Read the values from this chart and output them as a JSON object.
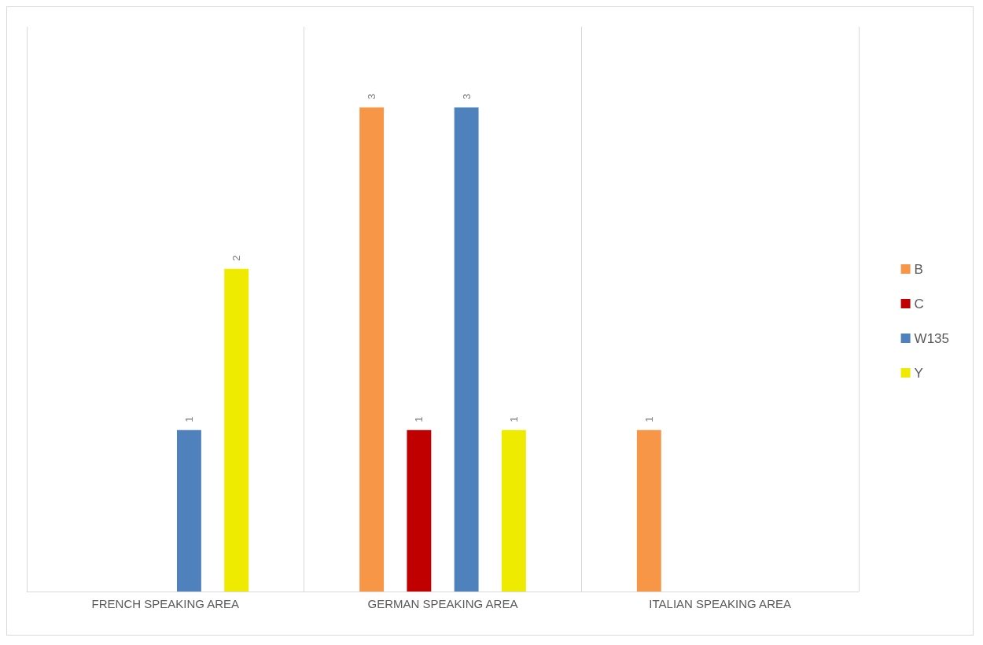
{
  "chart_data": {
    "type": "bar",
    "categories": [
      "FRENCH SPEAKING AREA",
      "GERMAN SPEAKING AREA",
      "ITALIAN SPEAKING AREA"
    ],
    "series": [
      {
        "name": "B",
        "color": "#f79646",
        "values": [
          null,
          3,
          1
        ]
      },
      {
        "name": "C",
        "color": "#c00000",
        "values": [
          null,
          1,
          null
        ]
      },
      {
        "name": "W135",
        "color": "#4f81bd",
        "values": [
          1,
          3,
          null
        ]
      },
      {
        "name": "Y",
        "color": "#eeea00",
        "values": [
          2,
          1,
          null
        ]
      }
    ],
    "data_labels": true,
    "grid": "x",
    "legend": "right",
    "tick_labels": "x"
  }
}
